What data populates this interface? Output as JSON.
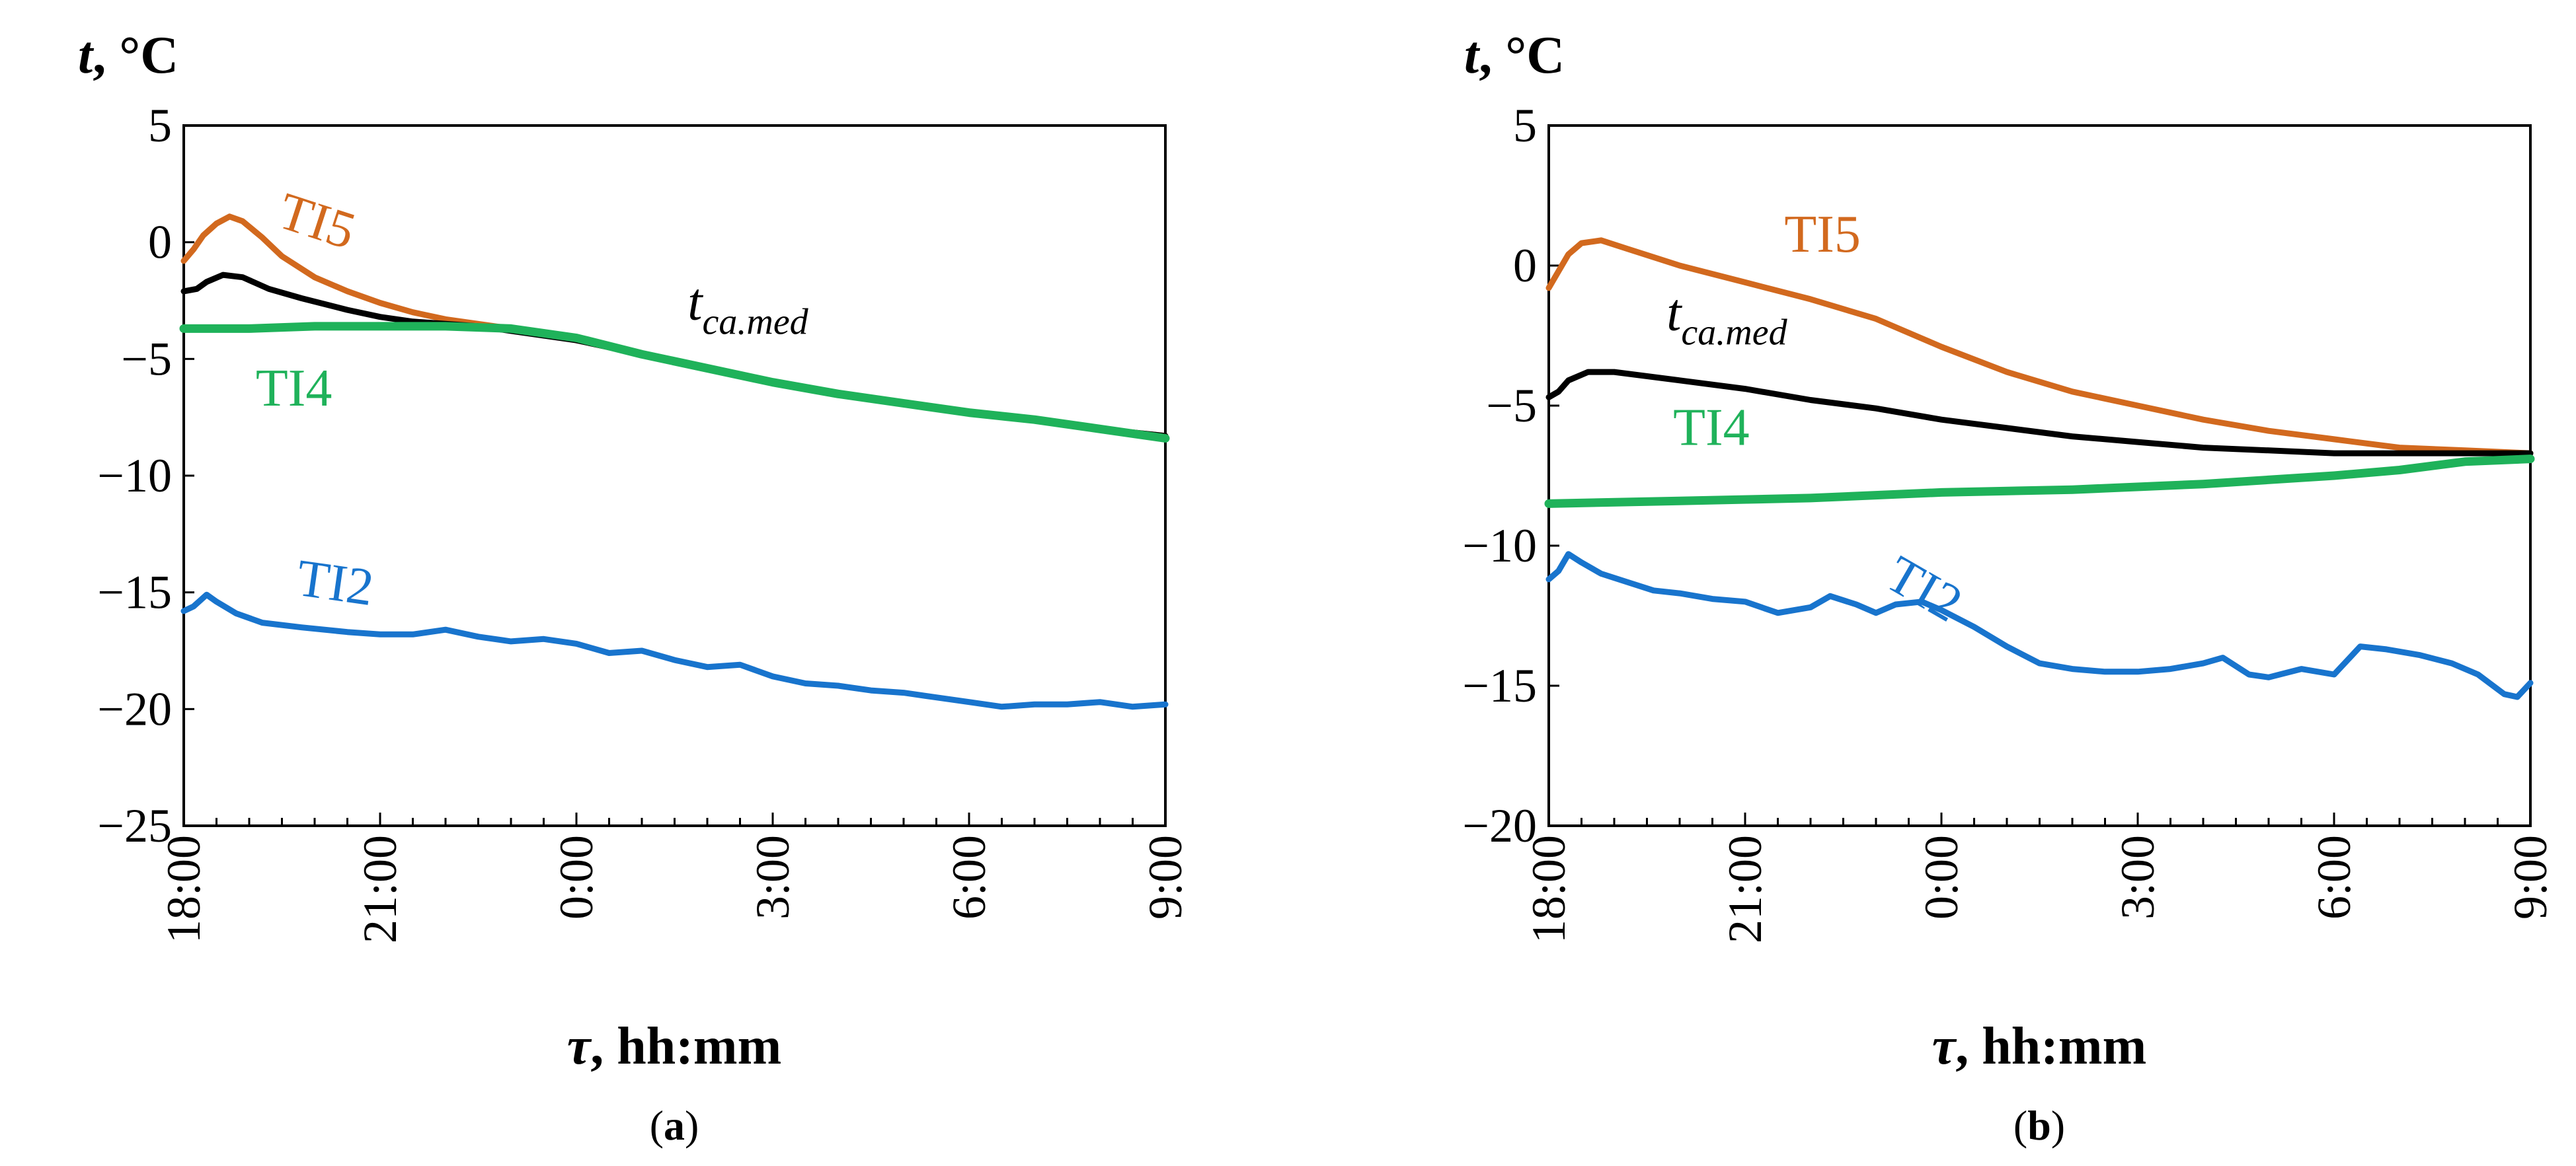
{
  "chart_data": [
    {
      "type": "line",
      "panel_label": "a",
      "ylabel_var": "t",
      "ylabel_unit": ", °C",
      "xlabel_var": "τ",
      "xlabel_unit": ", hh:mm",
      "xlim": [
        0,
        15
      ],
      "ylim": [
        -25,
        5
      ],
      "yticks": [
        5,
        0,
        -5,
        -10,
        -15,
        -20,
        -25
      ],
      "ytick_labels": [
        "5",
        "0",
        "−5",
        "−10",
        "−15",
        "−20",
        "−25"
      ],
      "xticks": [
        0,
        3,
        6,
        9,
        12,
        15
      ],
      "xtick_labels": [
        "18:00",
        "21:00",
        "0:00",
        "3:00",
        "6:00",
        "9:00"
      ],
      "minor_xtick_hours": 0.5,
      "grid": false,
      "series": [
        {
          "name": "TI5",
          "color": "#D2691E",
          "points": [
            [
              0,
              -0.8
            ],
            [
              0.15,
              -0.3
            ],
            [
              0.3,
              0.3
            ],
            [
              0.5,
              0.8
            ],
            [
              0.7,
              1.1
            ],
            [
              0.9,
              0.9
            ],
            [
              1.2,
              0.2
            ],
            [
              1.5,
              -0.6
            ],
            [
              2,
              -1.5
            ],
            [
              2.5,
              -2.1
            ],
            [
              3,
              -2.6
            ],
            [
              3.5,
              -3.0
            ],
            [
              4,
              -3.3
            ],
            [
              4.5,
              -3.5
            ],
            [
              5,
              -3.7
            ],
            [
              6,
              -4.2
            ],
            [
              7,
              -4.8
            ],
            [
              8,
              -5.4
            ],
            [
              9,
              -6.0
            ],
            [
              10,
              -6.5
            ],
            [
              11,
              -6.9
            ],
            [
              12,
              -7.3
            ],
            [
              13,
              -7.6
            ],
            [
              14,
              -8.0
            ],
            [
              15,
              -8.3
            ]
          ]
        },
        {
          "name": "t",
          "sub": "ca.med",
          "color": "#000000",
          "points": [
            [
              0,
              -2.1
            ],
            [
              0.2,
              -2.0
            ],
            [
              0.35,
              -1.7
            ],
            [
              0.6,
              -1.4
            ],
            [
              0.9,
              -1.5
            ],
            [
              1.3,
              -2.0
            ],
            [
              1.8,
              -2.4
            ],
            [
              2.5,
              -2.9
            ],
            [
              3,
              -3.2
            ],
            [
              3.5,
              -3.4
            ],
            [
              4,
              -3.5
            ],
            [
              4.5,
              -3.6
            ],
            [
              5,
              -3.8
            ],
            [
              6,
              -4.2
            ],
            [
              7,
              -4.8
            ],
            [
              8,
              -5.4
            ],
            [
              9,
              -6.0
            ],
            [
              10,
              -6.5
            ],
            [
              11,
              -6.9
            ],
            [
              12,
              -7.3
            ],
            [
              13,
              -7.6
            ],
            [
              14,
              -8.0
            ],
            [
              15,
              -8.3
            ]
          ]
        },
        {
          "name": "TI4",
          "color": "#1FB25A",
          "points": [
            [
              0,
              -3.7
            ],
            [
              1,
              -3.7
            ],
            [
              2,
              -3.6
            ],
            [
              3,
              -3.6
            ],
            [
              4,
              -3.6
            ],
            [
              5,
              -3.7
            ],
            [
              6,
              -4.1
            ],
            [
              7,
              -4.8
            ],
            [
              8,
              -5.4
            ],
            [
              9,
              -6.0
            ],
            [
              10,
              -6.5
            ],
            [
              11,
              -6.9
            ],
            [
              12,
              -7.3
            ],
            [
              13,
              -7.6
            ],
            [
              14,
              -8.0
            ],
            [
              15,
              -8.4
            ]
          ]
        },
        {
          "name": "TI2",
          "color": "#1874CD",
          "points": [
            [
              0,
              -15.8
            ],
            [
              0.15,
              -15.6
            ],
            [
              0.35,
              -15.1
            ],
            [
              0.5,
              -15.4
            ],
            [
              0.8,
              -15.9
            ],
            [
              1.2,
              -16.3
            ],
            [
              1.8,
              -16.5
            ],
            [
              2.5,
              -16.7
            ],
            [
              3,
              -16.8
            ],
            [
              3.5,
              -16.8
            ],
            [
              4,
              -16.6
            ],
            [
              4.5,
              -16.9
            ],
            [
              5,
              -17.1
            ],
            [
              5.5,
              -17.0
            ],
            [
              6,
              -17.2
            ],
            [
              6.5,
              -17.6
            ],
            [
              7,
              -17.5
            ],
            [
              7.5,
              -17.9
            ],
            [
              8,
              -18.2
            ],
            [
              8.5,
              -18.1
            ],
            [
              9,
              -18.6
            ],
            [
              9.5,
              -18.9
            ],
            [
              10,
              -19.0
            ],
            [
              10.5,
              -19.2
            ],
            [
              11,
              -19.3
            ],
            [
              11.5,
              -19.5
            ],
            [
              12,
              -19.7
            ],
            [
              12.5,
              -19.9
            ],
            [
              13,
              -19.8
            ],
            [
              13.5,
              -19.8
            ],
            [
              14,
              -19.7
            ],
            [
              14.5,
              -19.9
            ],
            [
              15,
              -19.8
            ]
          ]
        }
      ],
      "annotations": [
        {
          "text": "TI5",
          "color": "#D2691E",
          "x": 1.4,
          "y": 0.7,
          "rotate": 18
        },
        {
          "text": "t",
          "sub": "ca.med",
          "color": "#000000",
          "x": 7.7,
          "y": -3.3,
          "rotate": 0
        },
        {
          "text": "TI4",
          "color": "#1FB25A",
          "x": 1.1,
          "y": -7.0,
          "rotate": 0
        },
        {
          "text": "TI2",
          "color": "#1874CD",
          "x": 1.7,
          "y": -15.1,
          "rotate": 8
        }
      ]
    },
    {
      "type": "line",
      "panel_label": "b",
      "ylabel_var": "t",
      "ylabel_unit": ", °C",
      "xlabel_var": "τ",
      "xlabel_unit": ", hh:mm",
      "xlim": [
        0,
        15
      ],
      "ylim": [
        -20,
        5
      ],
      "yticks": [
        5,
        0,
        -5,
        -10,
        -15,
        -20
      ],
      "ytick_labels": [
        "5",
        "0",
        "−5",
        "−10",
        "−15",
        "−20"
      ],
      "xticks": [
        0,
        3,
        6,
        9,
        12,
        15
      ],
      "xtick_labels": [
        "18:00",
        "21:00",
        "0:00",
        "3:00",
        "6:00",
        "9:00"
      ],
      "minor_xtick_hours": 0.5,
      "grid": false,
      "series": [
        {
          "name": "TI5",
          "color": "#D2691E",
          "points": [
            [
              0,
              -0.8
            ],
            [
              0.15,
              -0.2
            ],
            [
              0.3,
              0.4
            ],
            [
              0.5,
              0.8
            ],
            [
              0.8,
              0.9
            ],
            [
              1.2,
              0.6
            ],
            [
              2,
              0.0
            ],
            [
              3,
              -0.6
            ],
            [
              4,
              -1.2
            ],
            [
              5,
              -1.9
            ],
            [
              6,
              -2.9
            ],
            [
              7,
              -3.8
            ],
            [
              8,
              -4.5
            ],
            [
              9,
              -5.0
            ],
            [
              10,
              -5.5
            ],
            [
              11,
              -5.9
            ],
            [
              12,
              -6.2
            ],
            [
              13,
              -6.5
            ],
            [
              14,
              -6.6
            ],
            [
              15,
              -6.7
            ]
          ]
        },
        {
          "name": "t",
          "sub": "ca.med",
          "color": "#000000",
          "points": [
            [
              0,
              -4.7
            ],
            [
              0.15,
              -4.5
            ],
            [
              0.3,
              -4.1
            ],
            [
              0.6,
              -3.8
            ],
            [
              1,
              -3.8
            ],
            [
              2,
              -4.1
            ],
            [
              3,
              -4.4
            ],
            [
              4,
              -4.8
            ],
            [
              5,
              -5.1
            ],
            [
              6,
              -5.5
            ],
            [
              7,
              -5.8
            ],
            [
              8,
              -6.1
            ],
            [
              9,
              -6.3
            ],
            [
              10,
              -6.5
            ],
            [
              11,
              -6.6
            ],
            [
              12,
              -6.7
            ],
            [
              13,
              -6.7
            ],
            [
              14,
              -6.7
            ],
            [
              15,
              -6.7
            ]
          ]
        },
        {
          "name": "TI4",
          "color": "#1FB25A",
          "points": [
            [
              0,
              -8.5
            ],
            [
              2,
              -8.4
            ],
            [
              4,
              -8.3
            ],
            [
              6,
              -8.1
            ],
            [
              8,
              -8.0
            ],
            [
              10,
              -7.8
            ],
            [
              12,
              -7.5
            ],
            [
              13,
              -7.3
            ],
            [
              14,
              -7.0
            ],
            [
              15,
              -6.9
            ]
          ]
        },
        {
          "name": "TI2",
          "color": "#1874CD",
          "points": [
            [
              0,
              -11.2
            ],
            [
              0.15,
              -10.9
            ],
            [
              0.3,
              -10.3
            ],
            [
              0.5,
              -10.6
            ],
            [
              0.8,
              -11.0
            ],
            [
              1.2,
              -11.3
            ],
            [
              1.6,
              -11.6
            ],
            [
              2,
              -11.7
            ],
            [
              2.5,
              -11.9
            ],
            [
              3,
              -12.0
            ],
            [
              3.5,
              -12.4
            ],
            [
              4,
              -12.2
            ],
            [
              4.3,
              -11.8
            ],
            [
              4.7,
              -12.1
            ],
            [
              5,
              -12.4
            ],
            [
              5.3,
              -12.1
            ],
            [
              5.7,
              -12.0
            ],
            [
              6,
              -12.3
            ],
            [
              6.5,
              -12.9
            ],
            [
              7,
              -13.6
            ],
            [
              7.5,
              -14.2
            ],
            [
              8,
              -14.4
            ],
            [
              8.5,
              -14.5
            ],
            [
              9,
              -14.5
            ],
            [
              9.5,
              -14.4
            ],
            [
              10,
              -14.2
            ],
            [
              10.3,
              -14.0
            ],
            [
              10.7,
              -14.6
            ],
            [
              11,
              -14.7
            ],
            [
              11.5,
              -14.4
            ],
            [
              12,
              -14.6
            ],
            [
              12.4,
              -13.6
            ],
            [
              12.8,
              -13.7
            ],
            [
              13.3,
              -13.9
            ],
            [
              13.8,
              -14.2
            ],
            [
              14.2,
              -14.6
            ],
            [
              14.6,
              -15.3
            ],
            [
              14.8,
              -15.4
            ],
            [
              15,
              -14.9
            ]
          ]
        }
      ],
      "annotations": [
        {
          "text": "TI5",
          "color": "#D2691E",
          "x": 3.6,
          "y": 0.5,
          "rotate": 0
        },
        {
          "text": "t",
          "sub": "ca.med",
          "color": "#000000",
          "x": 1.8,
          "y": -2.3,
          "rotate": 0
        },
        {
          "text": "TI4",
          "color": "#1FB25A",
          "x": 1.9,
          "y": -6.4,
          "rotate": 0
        },
        {
          "text": "TI2",
          "color": "#1874CD",
          "x": 5.1,
          "y": -11.4,
          "rotate": 30
        }
      ]
    }
  ]
}
